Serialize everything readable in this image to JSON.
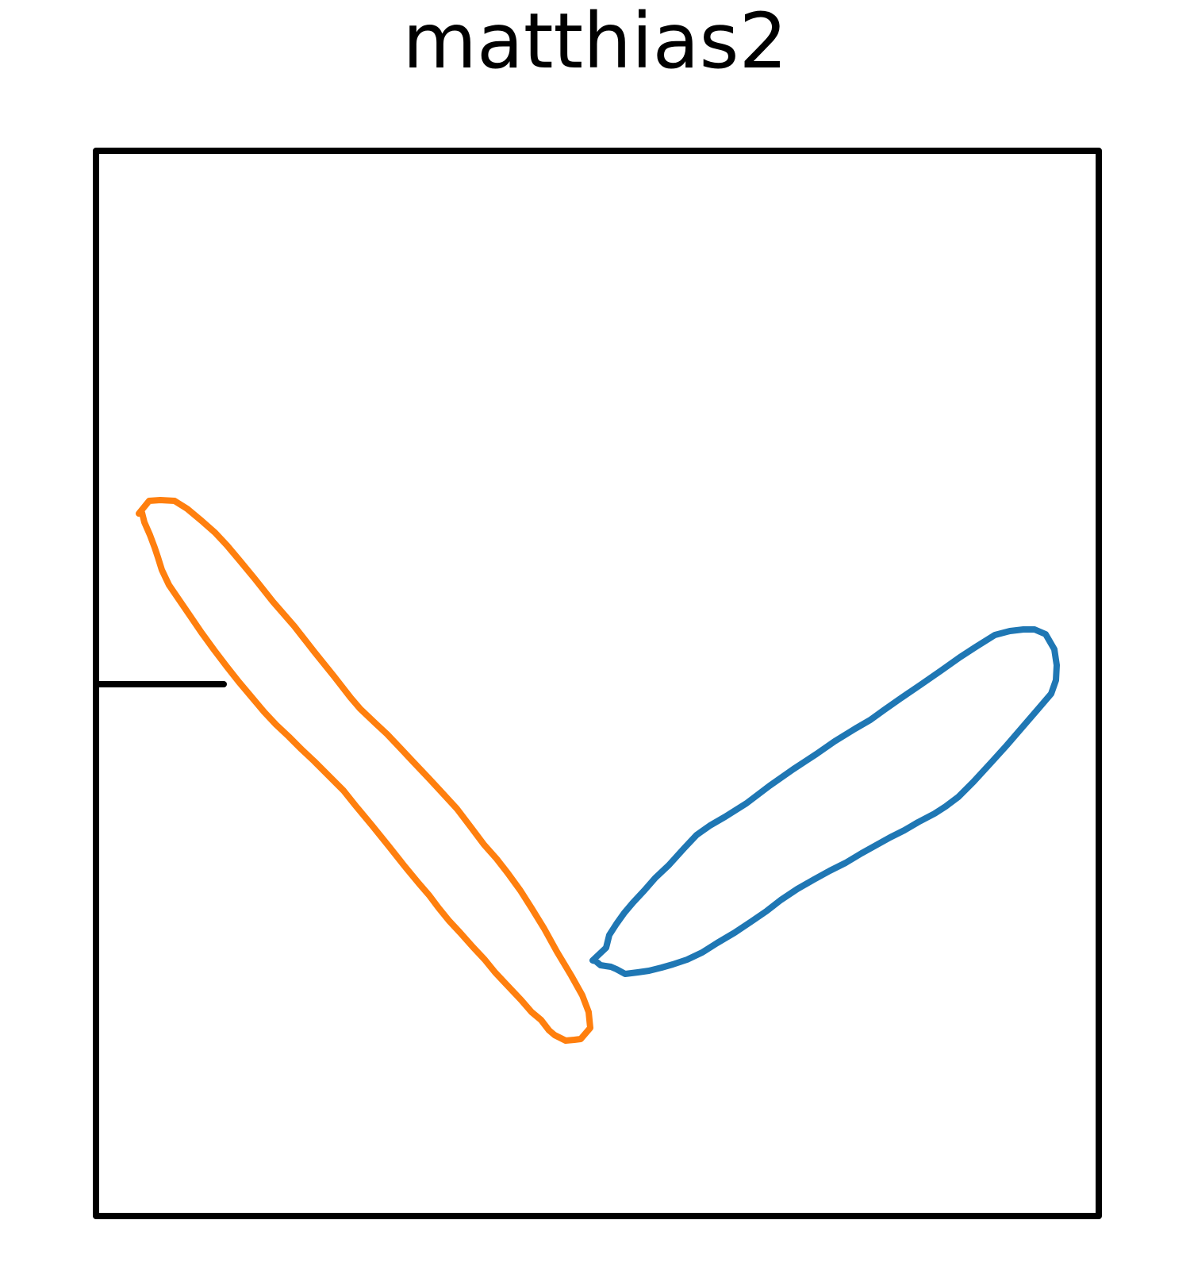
{
  "title": "matthias2",
  "colors": {
    "frame": "#000000",
    "shape_a": "#ff7f0e",
    "shape_b": "#1f77b4",
    "background": "#ffffff"
  },
  "shapes": [
    {
      "name": "orange-elongated-loop",
      "color": "#ff7f0e"
    },
    {
      "name": "blue-elongated-loop",
      "color": "#1f77b4"
    }
  ]
}
